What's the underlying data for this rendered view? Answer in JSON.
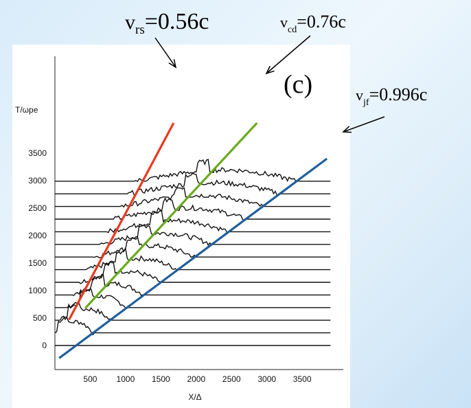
{
  "chart_data": {
    "type": "line",
    "panel_label": "(c)",
    "ylabel": "T/ωpe",
    "xlabel": "X/Δ",
    "xlim": [
      0,
      4000
    ],
    "ylim": [
      -300,
      4200
    ],
    "x_ticks": [
      "500",
      "1000",
      "1500",
      "2000",
      "2500",
      "3000",
      "3500"
    ],
    "y_ticks": [
      "0",
      "500",
      "1000",
      "1500",
      "2000",
      "2500",
      "3000",
      "3500"
    ],
    "waterfall_offsets": [
      0,
      230,
      460,
      690,
      920,
      1150,
      1380,
      1610,
      1840,
      2070,
      2300,
      2530,
      2760,
      2990
    ],
    "velocity_lines": [
      {
        "label_main": "v",
        "label_sub": "rs",
        "label_rest": "=0.56c",
        "color": "#e8391d",
        "x": [
          200,
          1680
        ],
        "y": [
          470,
          4050
        ]
      },
      {
        "label_main": "v",
        "label_sub": "cd",
        "label_rest": "=0.76c",
        "color": "#6aaa1e",
        "x": [
          430,
          2860
        ],
        "y": [
          680,
          4050
        ]
      },
      {
        "label_main": "v",
        "label_sub": "jf",
        "label_rest": "=0.996c",
        "color": "#1f5e9c",
        "x": [
          60,
          3850
        ],
        "y": [
          -230,
          3400
        ]
      }
    ]
  }
}
